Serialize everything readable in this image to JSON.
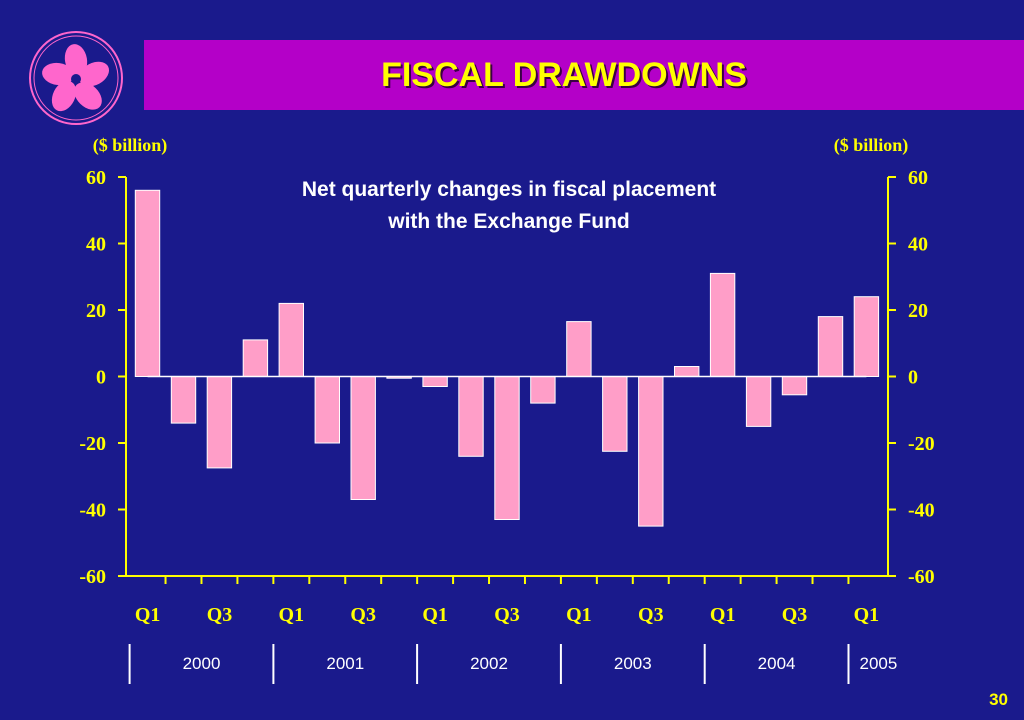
{
  "slide": {
    "title": "FISCAL DRAWDOWNS",
    "page_number": "30"
  },
  "colors": {
    "background": "#1a1a8c",
    "title_bar": "#b400c8",
    "title_text": "#ffff00",
    "axis": "#ffff00",
    "bar_fill": "#ff9ec8",
    "bar_stroke": "#ffffff",
    "subtitle_text": "#ffffff",
    "year_text": "#ffffff"
  },
  "logo": {
    "icon": "bauhinia-flower-icon"
  },
  "chart_data": {
    "type": "bar",
    "title": "Net quarterly changes in fiscal placement",
    "subtitle": "with the Exchange Fund",
    "ylabel_left": "($ billion)",
    "ylabel_right": "($ billion)",
    "ylim": [
      -60,
      60
    ],
    "yticks": [
      60,
      40,
      20,
      0,
      -20,
      -40,
      -60
    ],
    "grid": false,
    "categories": [
      "2000 Q1",
      "2000 Q2",
      "2000 Q3",
      "2000 Q4",
      "2001 Q1",
      "2001 Q2",
      "2001 Q3",
      "2001 Q4",
      "2002 Q1",
      "2002 Q2",
      "2002 Q3",
      "2002 Q4",
      "2003 Q1",
      "2003 Q2",
      "2003 Q3",
      "2003 Q4",
      "2004 Q1",
      "2004 Q2",
      "2004 Q3",
      "2004 Q4",
      "2005 Q1"
    ],
    "values": [
      56,
      -14,
      -27.5,
      11,
      22,
      -20,
      -37,
      -0.5,
      -3,
      -24,
      -43,
      -8,
      16.5,
      -22.5,
      -45,
      3,
      31,
      -15,
      -5.5,
      18,
      24
    ],
    "x_tick_labels": [
      "Q1",
      "Q3",
      "Q1",
      "Q3",
      "Q1",
      "Q3",
      "Q1",
      "Q3",
      "Q1",
      "Q3",
      "Q1"
    ],
    "years": [
      "2000",
      "2001",
      "2002",
      "2003",
      "2004",
      "2005"
    ]
  }
}
